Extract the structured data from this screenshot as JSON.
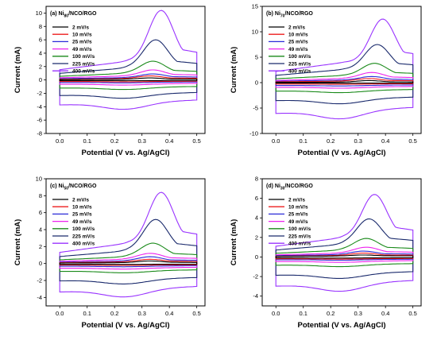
{
  "colors": {
    "2 mV/s": "#000000",
    "10 mV/s": "#ee1c1c",
    "25 mV/s": "#2b2bd8",
    "49 mV/s": "#ee22ee",
    "100 mV/s": "#1a8a1a",
    "225 mV/s": "#1a2a6c",
    "400 mV/s": "#9933ff"
  },
  "chart_data": [
    {
      "type": "line",
      "title": "(a) Ni",
      "title_sub": "80",
      "title_suffix": "/NCO/RGO",
      "xlabel": "Potential (V vs. Ag/AgCl)",
      "ylabel": "Current (mA)",
      "xlim": [
        -0.05,
        0.53
      ],
      "ylim": [
        -8,
        11
      ],
      "xticks": [
        "0.0",
        "0.1",
        "0.2",
        "0.3",
        "0.4",
        "0.5"
      ],
      "yticks": [
        "-8",
        "-6",
        "-4",
        "-2",
        "0",
        "2",
        "4",
        "6",
        "8",
        "10"
      ],
      "legend": "top-left",
      "series": [
        {
          "name": "2 mV/s",
          "peak": 0.3,
          "peak_x": 0.33,
          "anodic": 0.1,
          "cathodic": -0.1
        },
        {
          "name": "10 mV/s",
          "peak": 0.6,
          "peak_x": 0.33,
          "anodic": 0.2,
          "cathodic": -0.25
        },
        {
          "name": "25 mV/s",
          "peak": 0.9,
          "peak_x": 0.34,
          "anodic": 0.35,
          "cathodic": -0.4
        },
        {
          "name": "49 mV/s",
          "peak": 1.5,
          "peak_x": 0.34,
          "anodic": 0.6,
          "cathodic": -0.7
        },
        {
          "name": "100 mV/s",
          "peak": 2.8,
          "peak_x": 0.34,
          "anodic": 1.0,
          "cathodic": -1.3
        },
        {
          "name": "225 mV/s",
          "peak": 6.0,
          "peak_x": 0.35,
          "anodic": 1.8,
          "cathodic": -2.5
        },
        {
          "name": "400 mV/s",
          "peak": 10.4,
          "peak_x": 0.37,
          "anodic": 2.8,
          "cathodic": -4.0
        }
      ]
    },
    {
      "type": "line",
      "title": "(b) Ni",
      "title_sub": "70",
      "title_suffix": "/NCO/RGO",
      "xlabel": "Potential (V vs. Ag/AgCl)",
      "ylabel": "Current (mA)",
      "xlim": [
        -0.05,
        0.53
      ],
      "ylim": [
        -10,
        15
      ],
      "xticks": [
        "0.0",
        "0.1",
        "0.2",
        "0.3",
        "0.4",
        "0.5"
      ],
      "yticks": [
        "-10",
        "-5",
        "0",
        "5",
        "10",
        "15"
      ],
      "legend": "top-left",
      "series": [
        {
          "name": "2 mV/s",
          "peak": 0.4,
          "peak_x": 0.34,
          "anodic": 0.1,
          "cathodic": -0.1
        },
        {
          "name": "10 mV/s",
          "peak": 0.8,
          "peak_x": 0.34,
          "anodic": 0.3,
          "cathodic": -0.3
        },
        {
          "name": "25 mV/s",
          "peak": 1.2,
          "peak_x": 0.35,
          "anodic": 0.5,
          "cathodic": -0.6
        },
        {
          "name": "49 mV/s",
          "peak": 2.0,
          "peak_x": 0.35,
          "anodic": 0.8,
          "cathodic": -1.0
        },
        {
          "name": "100 mV/s",
          "peak": 3.8,
          "peak_x": 0.36,
          "anodic": 1.4,
          "cathodic": -1.8
        },
        {
          "name": "225 mV/s",
          "peak": 7.5,
          "peak_x": 0.37,
          "anodic": 2.6,
          "cathodic": -3.8
        },
        {
          "name": "400 mV/s",
          "peak": 12.5,
          "peak_x": 0.39,
          "anodic": 4.0,
          "cathodic": -6.5
        }
      ]
    },
    {
      "type": "line",
      "title": "(c) Ni",
      "title_sub": "50",
      "title_suffix": "/NCO/RGO",
      "xlabel": "Potential (V vs. Ag/AgCl)",
      "ylabel": "Current (mA)",
      "xlim": [
        -0.05,
        0.53
      ],
      "ylim": [
        -5,
        10
      ],
      "xticks": [
        "0.0",
        "0.1",
        "0.2",
        "0.3",
        "0.4",
        "0.5"
      ],
      "yticks": [
        "-4",
        "-2",
        "0",
        "2",
        "4",
        "6",
        "8",
        "10"
      ],
      "legend": "top-left",
      "series": [
        {
          "name": "2 mV/s",
          "peak": 0.3,
          "peak_x": 0.33,
          "anodic": 0.1,
          "cathodic": -0.1
        },
        {
          "name": "10 mV/s",
          "peak": 0.5,
          "peak_x": 0.33,
          "anodic": 0.2,
          "cathodic": -0.2
        },
        {
          "name": "25 mV/s",
          "peak": 0.8,
          "peak_x": 0.33,
          "anodic": 0.3,
          "cathodic": -0.35
        },
        {
          "name": "49 mV/s",
          "peak": 1.2,
          "peak_x": 0.33,
          "anodic": 0.5,
          "cathodic": -0.6
        },
        {
          "name": "100 mV/s",
          "peak": 2.4,
          "peak_x": 0.34,
          "anodic": 0.8,
          "cathodic": -1.0
        },
        {
          "name": "225 mV/s",
          "peak": 5.2,
          "peak_x": 0.35,
          "anodic": 1.5,
          "cathodic": -2.2
        },
        {
          "name": "400 mV/s",
          "peak": 8.4,
          "peak_x": 0.37,
          "anodic": 2.4,
          "cathodic": -3.6
        }
      ]
    },
    {
      "type": "line",
      "title": "(d) Ni",
      "title_sub": "30",
      "title_suffix": "/NCO/RGO",
      "xlabel": "Potential (V vs. Ag/AgCl)",
      "ylabel": "Current (mA)",
      "xlim": [
        -0.05,
        0.53
      ],
      "ylim": [
        -5,
        8
      ],
      "xticks": [
        "0.0",
        "0.1",
        "0.2",
        "0.3",
        "0.4",
        "0.5"
      ],
      "yticks": [
        "-4",
        "-2",
        "0",
        "2",
        "4",
        "6",
        "8"
      ],
      "legend": "top-left",
      "series": [
        {
          "name": "2 mV/s",
          "peak": 0.2,
          "peak_x": 0.32,
          "anodic": 0.1,
          "cathodic": -0.1
        },
        {
          "name": "10 mV/s",
          "peak": 0.4,
          "peak_x": 0.32,
          "anodic": 0.15,
          "cathodic": -0.2
        },
        {
          "name": "25 mV/s",
          "peak": 0.6,
          "peak_x": 0.32,
          "anodic": 0.25,
          "cathodic": -0.3
        },
        {
          "name": "49 mV/s",
          "peak": 1.0,
          "peak_x": 0.33,
          "anodic": 0.4,
          "cathodic": -0.5
        },
        {
          "name": "100 mV/s",
          "peak": 1.9,
          "peak_x": 0.33,
          "anodic": 0.7,
          "cathodic": -0.9
        },
        {
          "name": "225 mV/s",
          "peak": 3.9,
          "peak_x": 0.34,
          "anodic": 1.3,
          "cathodic": -2.0
        },
        {
          "name": "400 mV/s",
          "peak": 6.4,
          "peak_x": 0.36,
          "anodic": 2.0,
          "cathodic": -3.2
        }
      ]
    }
  ]
}
